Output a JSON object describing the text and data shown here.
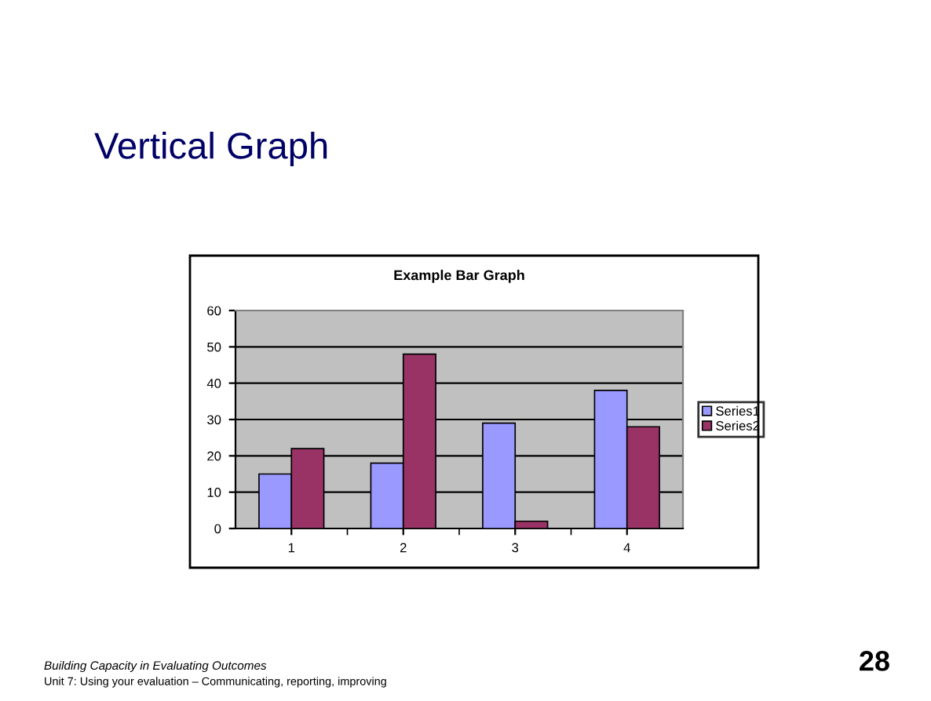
{
  "chart_data": {
    "type": "bar",
    "title": "Example Bar Graph",
    "categories": [
      "1",
      "2",
      "3",
      "4"
    ],
    "series": [
      {
        "name": "Series1",
        "color": "#9999ff",
        "values": [
          15,
          18,
          29,
          38
        ]
      },
      {
        "name": "Series2",
        "color": "#993366",
        "values": [
          22,
          48,
          2,
          28
        ]
      }
    ],
    "ylim": [
      0,
      60
    ],
    "yticks": [
      0,
      10,
      20,
      30,
      40,
      50,
      60
    ],
    "grid": "y",
    "legend": "right",
    "annotations": [
      "Vertical Graph",
      "Building Capacity in Evaluating Outcomes",
      "Unit 7: Using your evaluation – Communicating, reporting, improving",
      "28"
    ]
  }
}
